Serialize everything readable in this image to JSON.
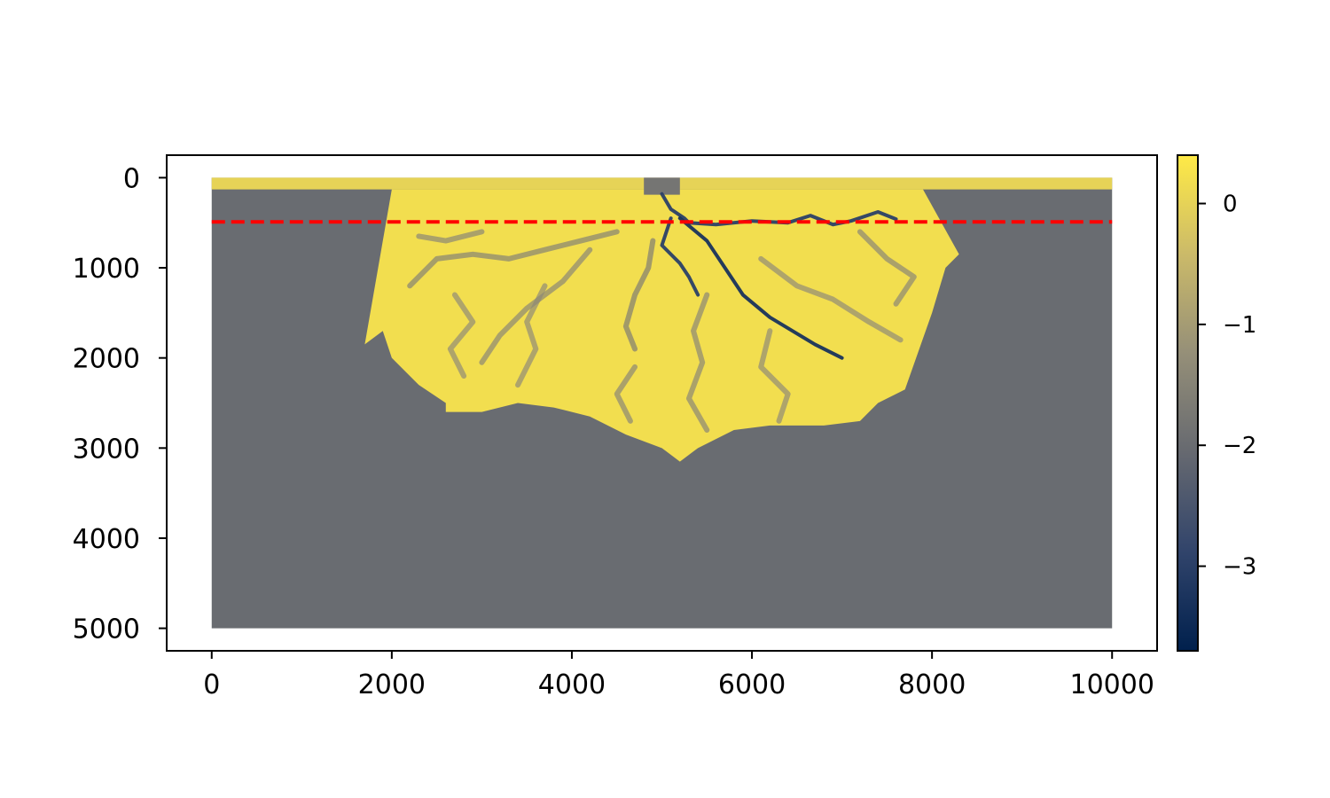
{
  "chart_data": {
    "type": "heatmap",
    "title": "",
    "xlabel": "",
    "ylabel": "",
    "xlim": [
      -500,
      10500
    ],
    "ylim": [
      5250,
      -250
    ],
    "y_inverted": true,
    "extent": [
      0,
      10000,
      0,
      5000
    ],
    "x_ticks": [
      0,
      2000,
      4000,
      6000,
      8000,
      10000
    ],
    "x_tick_labels": [
      "0",
      "2000",
      "4000",
      "6000",
      "8000",
      "10000"
    ],
    "y_ticks": [
      0,
      1000,
      2000,
      3000,
      4000,
      5000
    ],
    "y_tick_labels": [
      "0",
      "1000",
      "2000",
      "3000",
      "4000",
      "5000"
    ],
    "grid": false,
    "colormap": "cividis",
    "color_range": [
      -3.7,
      0.4
    ],
    "colorbar_ticks": [
      0,
      -1,
      -2,
      -3
    ],
    "colorbar_tick_labels": [
      "0",
      "−1",
      "−2",
      "−3"
    ],
    "colorbar_stops": [
      "#00204d",
      "#31446b",
      "#666970",
      "#958f78",
      "#cbba69",
      "#ffea46"
    ],
    "background_value": -2.0,
    "inlet_strip": {
      "y_range": [
        0,
        130
      ],
      "value": 0.0
    },
    "inlet_channel": {
      "x_range": [
        4800,
        5200
      ],
      "value": -1.8
    },
    "deposit_profile": {
      "x": [
        1700,
        1900,
        2000,
        2300,
        2600,
        2600,
        3000,
        3400,
        3800,
        4200,
        4600,
        5000,
        5200,
        5400,
        5800,
        6200,
        6800,
        7200,
        7400,
        7700,
        8000,
        8150,
        8300
      ],
      "depth": [
        1850,
        1700,
        2000,
        2300,
        2500,
        2600,
        2600,
        2500,
        2550,
        2650,
        2850,
        3000,
        3150,
        3000,
        2800,
        2750,
        2750,
        2700,
        2500,
        2350,
        1500,
        1000,
        850
      ],
      "value": 0.2
    },
    "shelf_edge": {
      "left_x": 2000,
      "right_x": 7900,
      "y": 130
    },
    "channels": [
      {
        "name": "",
        "points": [
          [
            5000,
            180
          ],
          [
            5100,
            350
          ],
          [
            5250,
            450
          ],
          [
            5300,
            500
          ],
          [
            5600,
            520
          ],
          [
            6000,
            480
          ],
          [
            6400,
            500
          ],
          [
            6650,
            420
          ],
          [
            6900,
            520
          ],
          [
            7100,
            480
          ],
          [
            7400,
            380
          ],
          [
            7600,
            460
          ]
        ],
        "value": -3.0
      },
      {
        "name": "",
        "points": [
          [
            5200,
            450
          ],
          [
            5500,
            700
          ],
          [
            5700,
            1000
          ],
          [
            5900,
            1300
          ],
          [
            6200,
            1550
          ],
          [
            6450,
            1700
          ],
          [
            6700,
            1850
          ],
          [
            7000,
            2000
          ]
        ],
        "value": -3.3
      },
      {
        "name": "",
        "points": [
          [
            5100,
            450
          ],
          [
            5000,
            750
          ],
          [
            5200,
            950
          ],
          [
            5300,
            1100
          ],
          [
            5400,
            1300
          ]
        ],
        "value": -3.0
      },
      {
        "name": "",
        "points": [
          [
            4900,
            700
          ],
          [
            4850,
            1000
          ],
          [
            4700,
            1300
          ],
          [
            4600,
            1650
          ],
          [
            4700,
            1900
          ]
        ],
        "value": -1.6
      },
      {
        "name": "",
        "points": [
          [
            4500,
            600
          ],
          [
            4100,
            700
          ],
          [
            3700,
            800
          ],
          [
            3300,
            900
          ],
          [
            2900,
            850
          ],
          [
            2500,
            900
          ],
          [
            2200,
            1200
          ]
        ],
        "value": -1.5
      },
      {
        "name": "",
        "points": [
          [
            4200,
            800
          ],
          [
            3900,
            1150
          ],
          [
            3500,
            1450
          ],
          [
            3200,
            1750
          ],
          [
            3000,
            2050
          ]
        ],
        "value": -1.4
      },
      {
        "name": "",
        "points": [
          [
            3700,
            1200
          ],
          [
            3500,
            1600
          ],
          [
            3600,
            1900
          ],
          [
            3400,
            2300
          ]
        ],
        "value": -1.3
      },
      {
        "name": "",
        "points": [
          [
            5500,
            1300
          ],
          [
            5350,
            1700
          ],
          [
            5450,
            2050
          ],
          [
            5300,
            2450
          ],
          [
            5500,
            2800
          ]
        ],
        "value": -1.4
      },
      {
        "name": "",
        "points": [
          [
            6100,
            900
          ],
          [
            6500,
            1200
          ],
          [
            6900,
            1350
          ],
          [
            7300,
            1600
          ],
          [
            7650,
            1800
          ]
        ],
        "value": -1.3
      },
      {
        "name": "",
        "points": [
          [
            7200,
            600
          ],
          [
            7500,
            900
          ],
          [
            7800,
            1100
          ],
          [
            7600,
            1400
          ]
        ],
        "value": -1.4
      },
      {
        "name": "",
        "points": [
          [
            6200,
            1700
          ],
          [
            6100,
            2100
          ],
          [
            6400,
            2400
          ],
          [
            6300,
            2700
          ]
        ],
        "value": -1.3
      },
      {
        "name": "",
        "points": [
          [
            2700,
            1300
          ],
          [
            2900,
            1600
          ],
          [
            2650,
            1900
          ],
          [
            2800,
            2200
          ]
        ],
        "value": -1.3
      },
      {
        "name": "",
        "points": [
          [
            4700,
            2100
          ],
          [
            4500,
            2400
          ],
          [
            4650,
            2700
          ]
        ],
        "value": -1.4
      },
      {
        "name": "",
        "points": [
          [
            3000,
            600
          ],
          [
            2600,
            700
          ],
          [
            2300,
            650
          ]
        ],
        "value": -1.4
      }
    ],
    "reference_line": {
      "y": 490,
      "x_range": [
        0,
        10000
      ],
      "color": "#ff0000",
      "style": "dashed"
    }
  }
}
